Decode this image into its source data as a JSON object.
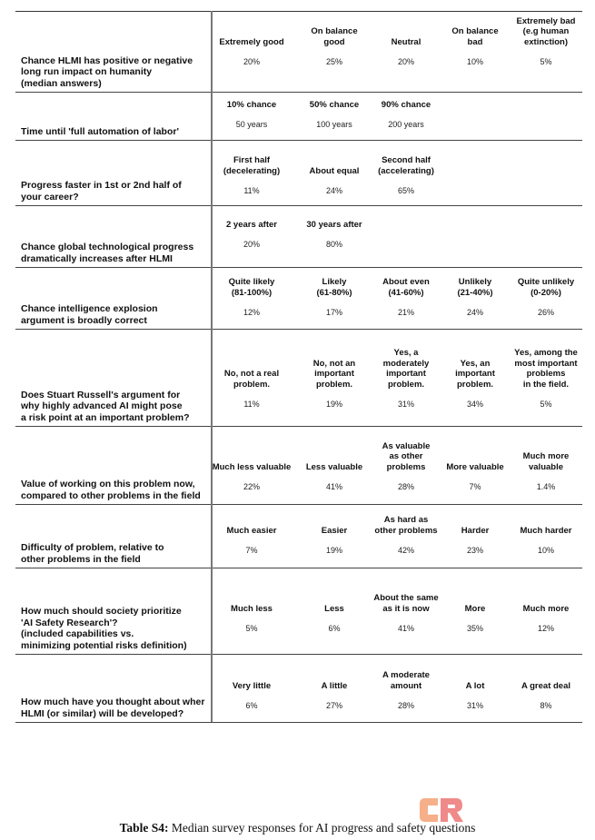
{
  "rows": [
    {
      "question": "Chance HLMI has positive or negative\nlong run impact on humanity\n(median answers)",
      "headers": [
        "Extremely good",
        "On balance\ngood",
        "Neutral",
        "On balance\nbad",
        "Extremely bad\n(e.g human\nextinction)"
      ],
      "values": [
        "20%",
        "25%",
        "20%",
        "10%",
        "5%"
      ]
    },
    {
      "question": "Time until 'full automation of labor'",
      "headers": [
        "10% chance",
        "50% chance",
        "90% chance"
      ],
      "values": [
        "50 years",
        "100 years",
        "200 years"
      ]
    },
    {
      "question": "Progress faster in 1st or 2nd half of\nyour career?",
      "headers": [
        "First half\n(decelerating)",
        "About equal",
        "Second half\n(accelerating)"
      ],
      "values": [
        "11%",
        "24%",
        "65%"
      ]
    },
    {
      "question": "Chance global technological progress\ndramatically increases after HLMI",
      "headers": [
        "2 years after",
        "30 years after"
      ],
      "values": [
        "20%",
        "80%"
      ]
    },
    {
      "question": "Chance intelligence explosion\nargument is broadly correct",
      "headers": [
        "Quite likely\n(81-100%)",
        "Likely\n(61-80%)",
        "About even\n(41-60%)",
        "Unlikely\n(21-40%)",
        "Quite unlikely\n(0-20%)"
      ],
      "values": [
        "12%",
        "17%",
        "21%",
        "24%",
        "26%"
      ]
    },
    {
      "question": "Does Stuart Russell's argument for\n why highly advanced AI might pose\na risk point at an important problem?",
      "headers": [
        "No, not a real\nproblem.",
        "No, not an\nimportant\nproblem.",
        "Yes, a\nmoderately\nimportant\nproblem.",
        "Yes, an\nimportant\nproblem.",
        "Yes, among the\nmost important\nproblems\nin the field."
      ],
      "values": [
        "11%",
        "19%",
        "31%",
        "34%",
        "5%"
      ]
    },
    {
      "question": "Value of working on this problem now,\ncompared to other problems in the field",
      "headers": [
        "Much less valuable",
        "Less valuable",
        "As valuable\nas other\nproblems",
        "More valuable",
        "Much more\nvaluable"
      ],
      "values": [
        "22%",
        "41%",
        "28%",
        "7%",
        "1.4%"
      ]
    },
    {
      "question": "Difficulty of problem, relative to\nother problems in the field",
      "headers": [
        "Much easier",
        "Easier",
        "As hard as\nother problems",
        "Harder",
        "Much harder"
      ],
      "values": [
        "7%",
        "19%",
        "42%",
        "23%",
        "10%"
      ]
    },
    {
      "question": "How much should society prioritize\n'AI Safety Research'?\n(included capabilities vs.\nminimizing potential risks definition)",
      "headers": [
        "Much less",
        "Less",
        "About the same\nas it is now",
        "More",
        "Much more"
      ],
      "values": [
        "5%",
        "6%",
        "41%",
        "35%",
        "12%"
      ]
    },
    {
      "question": "How much have you thought about wher\nHLMI (or similar) will be developed?",
      "headers": [
        "Very little",
        "A little",
        "A moderate\namount",
        "A lot",
        "A great deal"
      ],
      "values": [
        "6%",
        "27%",
        "28%",
        "31%",
        "8%"
      ]
    }
  ],
  "caption": {
    "label": "Table S4:",
    "text": " Median survey responses for AI progress and safety questions"
  },
  "logo": {
    "text": "CR",
    "colors": [
      "#f5b08a",
      "#f08a8a"
    ]
  }
}
